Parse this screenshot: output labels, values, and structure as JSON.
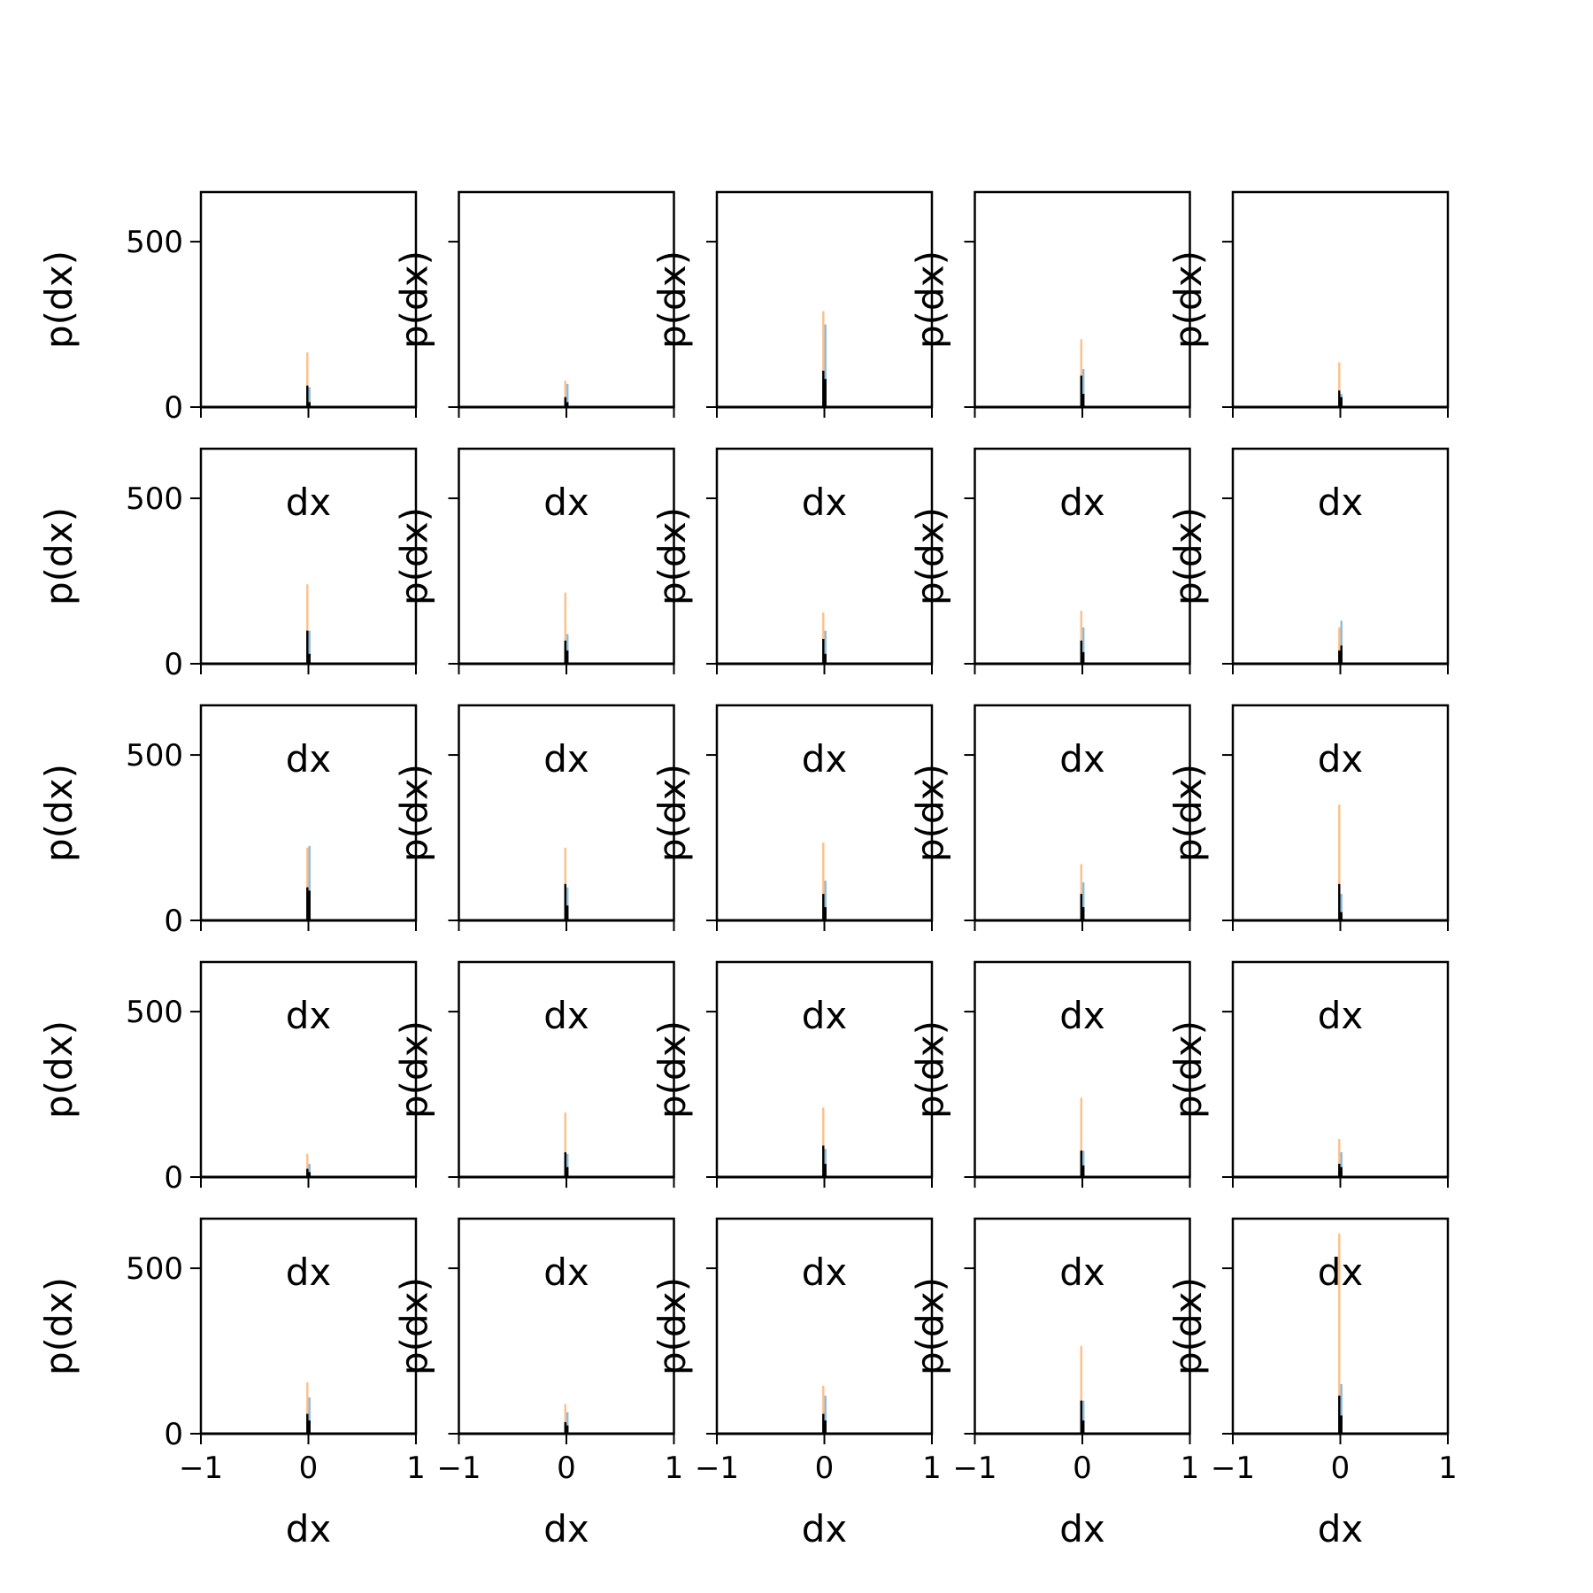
{
  "chart_data": {
    "type": "histogram-grid",
    "rows": 5,
    "cols": 5,
    "xlim": [
      -1,
      1
    ],
    "ylim": [
      0,
      650
    ],
    "xticks": [
      -1,
      0,
      1
    ],
    "xtick_labels": [
      "−1",
      "0",
      "1"
    ],
    "yticks": [
      0,
      500
    ],
    "ytick_labels": [
      "0",
      "500"
    ],
    "xlabel": "dx",
    "ylabel": "p(dx)",
    "bin_width": 0.02,
    "series_colors": [
      "#ff7f0e",
      "#1f77b4",
      "#000000"
    ],
    "bar_alpha": 0.5,
    "panels": [
      {
        "orange": [
          [
            -0.01,
            165
          ]
        ],
        "blue": [
          [
            0.01,
            60
          ]
        ],
        "black": [
          [
            -0.01,
            65
          ],
          [
            0.01,
            15
          ]
        ]
      },
      {
        "orange": [
          [
            -0.01,
            80
          ]
        ],
        "blue": [
          [
            0.01,
            70
          ]
        ],
        "black": [
          [
            -0.01,
            30
          ],
          [
            0.01,
            15
          ]
        ]
      },
      {
        "orange": [
          [
            -0.01,
            290
          ]
        ],
        "blue": [
          [
            0.01,
            250
          ]
        ],
        "black": [
          [
            -0.01,
            110
          ],
          [
            0.01,
            85
          ]
        ]
      },
      {
        "orange": [
          [
            -0.01,
            205
          ]
        ],
        "blue": [
          [
            0.01,
            115
          ]
        ],
        "black": [
          [
            -0.01,
            95
          ],
          [
            0.01,
            40
          ]
        ]
      },
      {
        "orange": [
          [
            -0.01,
            135
          ]
        ],
        "blue": [
          [
            0.01,
            40
          ]
        ],
        "black": [
          [
            -0.01,
            50
          ],
          [
            0.01,
            30
          ]
        ]
      },
      {
        "orange": [
          [
            -0.01,
            240
          ]
        ],
        "blue": [
          [
            0.01,
            100
          ]
        ],
        "black": [
          [
            -0.01,
            100
          ],
          [
            0.01,
            30
          ]
        ]
      },
      {
        "orange": [
          [
            -0.01,
            215
          ]
        ],
        "blue": [
          [
            0.01,
            90
          ]
        ],
        "black": [
          [
            -0.01,
            70
          ],
          [
            0.01,
            40
          ]
        ]
      },
      {
        "orange": [
          [
            -0.01,
            155
          ]
        ],
        "blue": [
          [
            0.01,
            100
          ]
        ],
        "black": [
          [
            -0.01,
            75
          ],
          [
            0.01,
            30
          ]
        ]
      },
      {
        "orange": [
          [
            -0.01,
            160
          ]
        ],
        "blue": [
          [
            0.01,
            110
          ]
        ],
        "black": [
          [
            -0.01,
            70
          ],
          [
            0.01,
            35
          ]
        ]
      },
      {
        "orange": [
          [
            -0.01,
            110
          ]
        ],
        "blue": [
          [
            0.01,
            130
          ]
        ],
        "black": [
          [
            -0.01,
            40
          ],
          [
            0.01,
            55
          ]
        ]
      },
      {
        "orange": [
          [
            -0.01,
            220
          ]
        ],
        "blue": [
          [
            0.01,
            225
          ]
        ],
        "black": [
          [
            -0.01,
            100
          ],
          [
            0.01,
            90
          ]
        ]
      },
      {
        "orange": [
          [
            -0.01,
            220
          ]
        ],
        "blue": [
          [
            0.01,
            100
          ]
        ],
        "black": [
          [
            -0.01,
            110
          ],
          [
            0.01,
            45
          ]
        ]
      },
      {
        "orange": [
          [
            -0.01,
            235
          ]
        ],
        "blue": [
          [
            0.01,
            120
          ]
        ],
        "black": [
          [
            -0.01,
            80
          ],
          [
            0.01,
            40
          ]
        ]
      },
      {
        "orange": [
          [
            -0.01,
            170
          ]
        ],
        "blue": [
          [
            0.01,
            115
          ]
        ],
        "black": [
          [
            -0.01,
            80
          ],
          [
            0.01,
            40
          ]
        ]
      },
      {
        "orange": [
          [
            -0.01,
            350
          ]
        ],
        "blue": [
          [
            0.01,
            80
          ]
        ],
        "black": [
          [
            -0.01,
            110
          ],
          [
            0.01,
            25
          ]
        ]
      },
      {
        "orange": [
          [
            -0.01,
            70
          ]
        ],
        "blue": [
          [
            0.01,
            40
          ]
        ],
        "black": [
          [
            -0.01,
            25
          ],
          [
            0.01,
            15
          ]
        ]
      },
      {
        "orange": [
          [
            -0.01,
            195
          ]
        ],
        "blue": [
          [
            0.01,
            70
          ]
        ],
        "black": [
          [
            -0.01,
            75
          ],
          [
            0.01,
            30
          ]
        ]
      },
      {
        "orange": [
          [
            -0.01,
            210
          ]
        ],
        "blue": [
          [
            0.01,
            85
          ]
        ],
        "black": [
          [
            -0.01,
            95
          ],
          [
            0.01,
            40
          ]
        ]
      },
      {
        "orange": [
          [
            -0.01,
            240
          ]
        ],
        "blue": [
          [
            0.01,
            80
          ]
        ],
        "black": [
          [
            -0.01,
            80
          ],
          [
            0.01,
            35
          ]
        ]
      },
      {
        "orange": [
          [
            -0.01,
            115
          ]
        ],
        "blue": [
          [
            0.01,
            75
          ]
        ],
        "black": [
          [
            -0.01,
            40
          ],
          [
            0.01,
            30
          ]
        ]
      },
      {
        "orange": [
          [
            -0.01,
            155
          ]
        ],
        "blue": [
          [
            0.01,
            110
          ]
        ],
        "black": [
          [
            -0.01,
            60
          ],
          [
            0.01,
            40
          ]
        ]
      },
      {
        "orange": [
          [
            -0.01,
            90
          ]
        ],
        "blue": [
          [
            0.01,
            65
          ]
        ],
        "black": [
          [
            -0.01,
            35
          ],
          [
            0.01,
            25
          ]
        ]
      },
      {
        "orange": [
          [
            -0.01,
            145
          ]
        ],
        "blue": [
          [
            0.01,
            115
          ]
        ],
        "black": [
          [
            -0.01,
            60
          ],
          [
            0.01,
            40
          ]
        ]
      },
      {
        "orange": [
          [
            -0.01,
            265
          ]
        ],
        "blue": [
          [
            0.01,
            100
          ]
        ],
        "black": [
          [
            -0.01,
            100
          ],
          [
            0.01,
            40
          ]
        ]
      },
      {
        "orange": [
          [
            -0.01,
            605
          ]
        ],
        "blue": [
          [
            0.01,
            150
          ]
        ],
        "black": [
          [
            -0.01,
            115
          ],
          [
            0.01,
            55
          ]
        ]
      }
    ]
  }
}
